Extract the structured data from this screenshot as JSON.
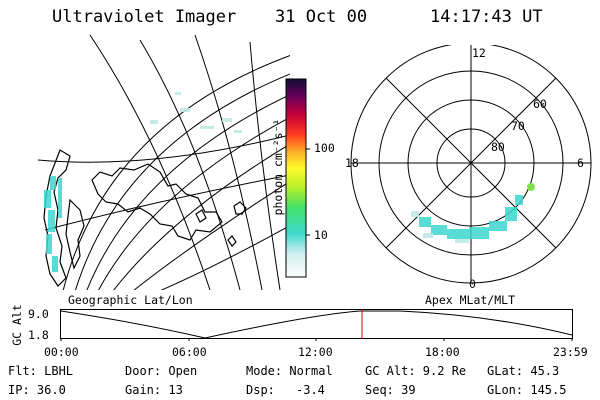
{
  "header": {
    "instrument": "Ultraviolet Imager",
    "date": "31 Oct 00",
    "time": "14:17:43 UT"
  },
  "colorbar": {
    "unit_label": "photon cm⁻²s⁻¹",
    "ticks": [
      "100",
      "10"
    ]
  },
  "polar_plot": {
    "mlt_labels": {
      "top": "12",
      "left": "18",
      "right": "6",
      "bottom": "0"
    },
    "lat_labels": [
      "60",
      "70",
      "80"
    ]
  },
  "geo_label": "Geographic Lat/Lon",
  "apex_label": "Apex MLat/MLT",
  "alt_plot": {
    "axis_label": "GC Alt",
    "y_ticks": [
      "9.0",
      "1.8"
    ],
    "x_ticks": [
      "00:00",
      "06:00",
      "12:00",
      "18:00",
      "23:59"
    ]
  },
  "info": {
    "row1": [
      "Flt: LBHL",
      "Door: Open",
      "Mode: Normal",
      "GC Alt: 9.2 Re",
      "GLat: 45.3"
    ],
    "row2": [
      "IP: 36.0",
      "Gain: 13",
      "Dsp:",
      "-3.4",
      "Seq: 39",
      "GLon: 145.5"
    ]
  }
}
